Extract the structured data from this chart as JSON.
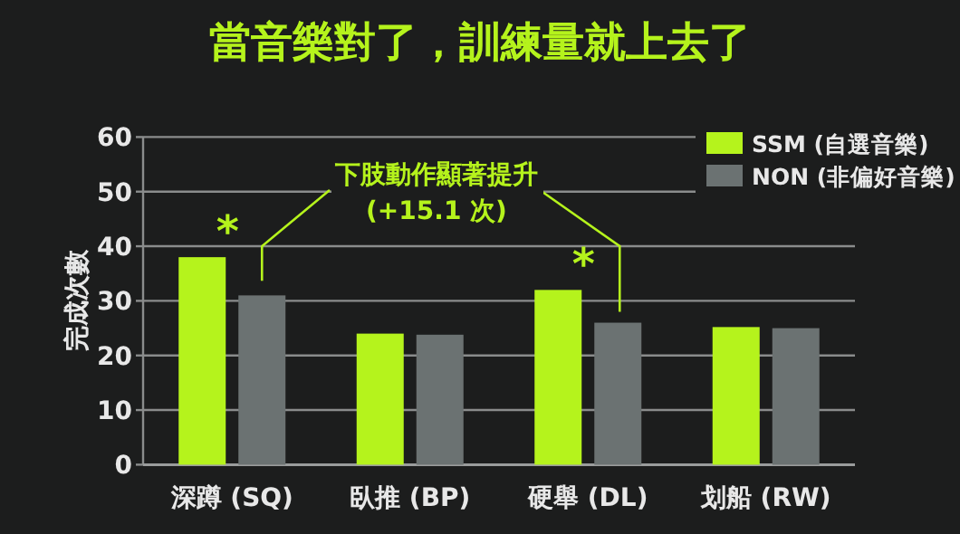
{
  "chart_data": {
    "type": "bar",
    "title": "當音樂對了，訓練量就上去了",
    "ylabel": "完成次數",
    "categories": [
      "深蹲 (SQ)",
      "臥推 (BP)",
      "硬舉 (DL)",
      "划船 (RW)"
    ],
    "series": [
      {
        "name": "SSM (自選音樂)",
        "color": "#b5f31c",
        "values": [
          38,
          24,
          32,
          25.2
        ]
      },
      {
        "name": "NON (非偏好音樂)",
        "color": "#6b7272",
        "values": [
          31,
          23.8,
          26,
          25
        ]
      }
    ],
    "ylim": [
      0,
      60
    ],
    "yticks": [
      0,
      10,
      20,
      30,
      40,
      50,
      60
    ],
    "grid": "y",
    "legend": "top right",
    "annotations": [
      {
        "text": "*",
        "x": "深蹲 (SQ)",
        "y": 38
      },
      {
        "text": "*",
        "x": "硬舉 (DL)",
        "y": 32
      },
      "下肢動作顯著提升",
      "(+15.1 次)"
    ]
  }
}
